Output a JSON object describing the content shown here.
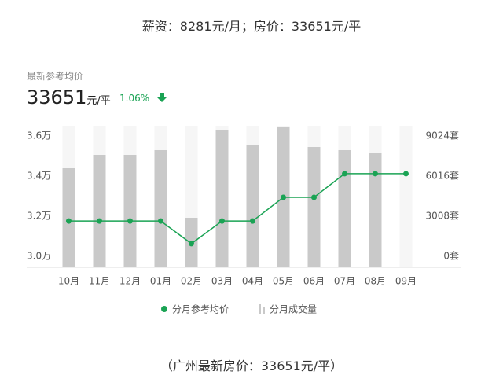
{
  "header": {
    "title": "薪资：8281元/月；房价：33651元/平"
  },
  "summary": {
    "label": "最新参考均价",
    "price": "33651",
    "unit": "元/平",
    "change": "1.06%"
  },
  "chart_data": {
    "type": "bar-line",
    "categories": [
      "10月",
      "11月",
      "12月",
      "01月",
      "02月",
      "03月",
      "04月",
      "05月",
      "06月",
      "07月",
      "08月",
      "09月"
    ],
    "series": [
      {
        "name": "分月参考均价",
        "type": "line",
        "color": "#1aa354",
        "values": [
          3.176,
          3.176,
          3.176,
          3.176,
          3.063,
          3.176,
          3.176,
          3.294,
          3.294,
          3.412,
          3.412,
          3.412
        ]
      },
      {
        "name": "分月成交量",
        "type": "bar",
        "axis": "y2",
        "color": "#c9c9c9",
        "values": [
          6606,
          7608,
          7608,
          7962,
          2890,
          9496,
          8375,
          9673,
          8198,
          7962,
          7785,
          null
        ]
      }
    ],
    "ylim": [
      2.945,
      3.651
    ],
    "yticks": [
      {
        "value": 3.0,
        "label": "3.0万"
      },
      {
        "value": 3.2,
        "label": "3.2万"
      },
      {
        "value": 3.4,
        "label": "3.4万"
      },
      {
        "value": 3.6,
        "label": "3.6万"
      }
    ],
    "y2lim": [
      -826,
      9791
    ],
    "y2ticks": [
      {
        "value": 0,
        "label": "0套"
      },
      {
        "value": 3008,
        "label": "3008套"
      },
      {
        "value": 6016,
        "label": "6016套"
      },
      {
        "value": 9024,
        "label": "9024套"
      }
    ]
  },
  "footer": {
    "note": "（广州最新房价：33651元/平）"
  }
}
